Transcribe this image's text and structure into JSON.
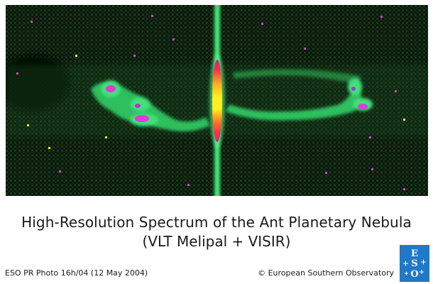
{
  "caption": {
    "title": "High-Resolution Spectrum of the Ant Planetary Nebula",
    "subtitle": "(VLT Melipal + VISIR)"
  },
  "footer": {
    "photo_id": "ESO PR Photo 16h/04 (12 May 2004)",
    "copyright": "© European Southern Observatory"
  },
  "logo": {
    "text": "ESO",
    "background_color": "#1f78c8"
  },
  "image": {
    "description_colors": {
      "background": "#0b160b",
      "emission_green": "#33d86a",
      "emission_magenta": "#e03ad8",
      "emission_core_yellow": "#ffee22",
      "emission_core_red": "#ff2a4a"
    }
  }
}
